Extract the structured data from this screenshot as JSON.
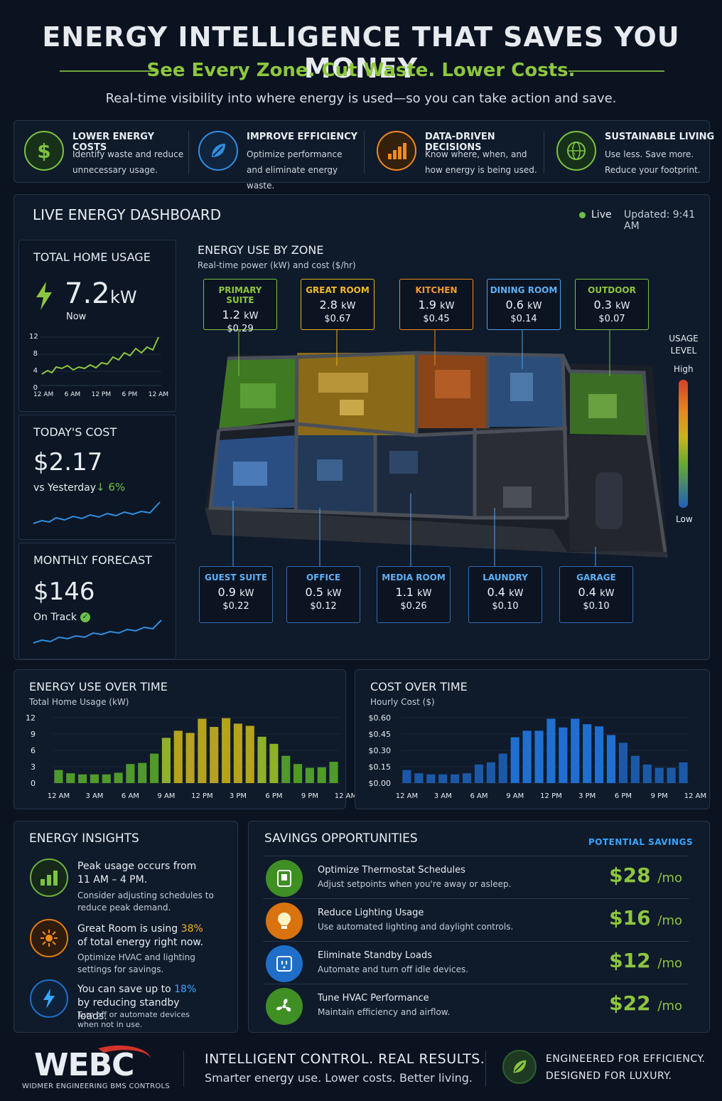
{
  "header": {
    "title": "ENERGY INTELLIGENCE THAT SAVES YOU MONEY",
    "subtitle": "See Every Zone. Cut Waste. Lower Costs.",
    "tagline": "Real-time visibility into where energy is used—so you can take action and save."
  },
  "benefits": [
    {
      "icon": "dollar-icon",
      "title": "LOWER ENERGY COSTS",
      "desc": "Identify waste and reduce unnecessary usage.",
      "color": "#7cc243"
    },
    {
      "icon": "leaf-icon",
      "title": "IMPROVE EFFICIENCY",
      "desc": "Optimize performance and eliminate energy waste.",
      "color": "#2f8fe0"
    },
    {
      "icon": "bar-chart-icon",
      "title": "DATA-DRIVEN DECISIONS",
      "desc": "Know where, when, and how energy is being used.",
      "color": "#f08a1c"
    },
    {
      "icon": "globe-icon",
      "title": "SUSTAINABLE LIVING",
      "desc": "Use less. Save more. Reduce your footprint.",
      "color": "#7cc243"
    }
  ],
  "dashboard": {
    "title": "LIVE ENERGY DASHBOARD",
    "live": "Live",
    "updated": "Updated: 9:41 AM",
    "total": {
      "title": "TOTAL HOME USAGE",
      "value": "7.2",
      "unit": "kW",
      "now": "Now",
      "yticks": [
        "12",
        "8",
        "4",
        "0"
      ],
      "xticks": [
        "12 AM",
        "6 AM",
        "12 PM",
        "6 PM",
        "12 AM"
      ]
    },
    "cost": {
      "title": "TODAY'S COST",
      "value": "$2.17",
      "vs": "vs Yesterday",
      "change": "↓ 6%"
    },
    "forecast": {
      "title": "MONTHLY FORECAST",
      "value": "$146",
      "status": "On Track"
    },
    "zones_title": "ENERGY USE BY ZONE",
    "zones_sub": "Real-time power (kW) and cost ($/hr)",
    "legend": {
      "title1": "USAGE",
      "title2": "LEVEL",
      "high": "High",
      "low": "Low"
    },
    "zones_top": [
      {
        "name": "PRIMARY SUITE",
        "kw": "1.2",
        "unit": "kW",
        "cost": "$0.29",
        "color": "#7cc243"
      },
      {
        "name": "GREAT ROOM",
        "kw": "2.8",
        "unit": "kW",
        "cost": "$0.67",
        "color": "#e9b21e"
      },
      {
        "name": "KITCHEN",
        "kw": "1.9",
        "unit": "kW",
        "cost": "$0.45",
        "color": "#f08a1c"
      },
      {
        "name": "DINING ROOM",
        "kw": "0.6",
        "unit": "kW",
        "cost": "$0.14",
        "color": "#4da3f0"
      },
      {
        "name": "OUTDOOR",
        "kw": "0.3",
        "unit": "kW",
        "cost": "$0.07",
        "color": "#7cc243"
      }
    ],
    "zones_bottom": [
      {
        "name": "GUEST SUITE",
        "kw": "0.9",
        "unit": "kW",
        "cost": "$0.22",
        "color": "#4da3f0"
      },
      {
        "name": "OFFICE",
        "kw": "0.5",
        "unit": "kW",
        "cost": "$0.12",
        "color": "#4da3f0"
      },
      {
        "name": "MEDIA ROOM",
        "kw": "1.1",
        "unit": "kW",
        "cost": "$0.26",
        "color": "#4da3f0"
      },
      {
        "name": "LAUNDRY",
        "kw": "0.4",
        "unit": "kW",
        "cost": "$0.10",
        "color": "#4da3f0"
      },
      {
        "name": "GARAGE",
        "kw": "0.4",
        "unit": "kW",
        "cost": "$0.10",
        "color": "#4da3f0"
      }
    ]
  },
  "chart_data": [
    {
      "type": "bar",
      "title": "ENERGY USE OVER TIME",
      "subtitle": "Total Home Usage (kW)",
      "ylim": [
        0,
        12
      ],
      "yticks": [
        "12",
        "9",
        "6",
        "3",
        "0"
      ],
      "xticks": [
        "12 AM",
        "3 AM",
        "6 AM",
        "9 AM",
        "12 PM",
        "3 PM",
        "6 PM",
        "9 PM",
        "12 AM"
      ],
      "values": [
        2.4,
        1.8,
        1.6,
        1.6,
        1.6,
        1.9,
        3.5,
        3.7,
        5.4,
        8.3,
        9.6,
        9.2,
        11.8,
        10.3,
        11.9,
        10.9,
        10.5,
        8.5,
        7.2,
        5.0,
        3.5,
        2.8,
        2.9,
        3.9
      ]
    },
    {
      "type": "bar",
      "title": "COST OVER TIME",
      "subtitle": "Hourly Cost ($)",
      "ylim": [
        0,
        0.6
      ],
      "yticks": [
        "$0.60",
        "$0.45",
        "$0.30",
        "$0.15",
        "$0.00"
      ],
      "xticks": [
        "12 AM",
        "3 AM",
        "6 AM",
        "9 AM",
        "12 PM",
        "3 PM",
        "6 PM",
        "9 PM",
        "12 AM"
      ],
      "values": [
        0.12,
        0.09,
        0.08,
        0.08,
        0.08,
        0.09,
        0.17,
        0.19,
        0.27,
        0.42,
        0.48,
        0.48,
        0.59,
        0.51,
        0.59,
        0.54,
        0.52,
        0.44,
        0.37,
        0.25,
        0.17,
        0.14,
        0.14,
        0.19
      ]
    }
  ],
  "insights": {
    "title": "ENERGY INSIGHTS",
    "items": [
      {
        "icon": "bar-chart-icon",
        "main": "Peak usage occurs from 11 AM – 4 PM.",
        "sub": "Consider adjusting schedules to reduce peak demand.",
        "color": "#7cc243"
      },
      {
        "icon": "sun-icon",
        "pre": "Great Room is using ",
        "hl": "38%",
        "post": " of total energy right now.",
        "sub": "Optimize HVAC and lighting settings for savings.",
        "color": "#f08a1c"
      },
      {
        "icon": "lightning-icon",
        "pre": "You can save up to ",
        "hl": "18%",
        "post": " by reducing standby loads.",
        "sub": "Turn off or automate devices when not in use.",
        "color": "#2f8fe0"
      }
    ]
  },
  "savings": {
    "title": "SAVINGS OPPORTUNITIES",
    "col": "POTENTIAL SAVINGS",
    "items": [
      {
        "icon": "thermostat-icon",
        "title": "Optimize Thermostat Schedules",
        "desc": "Adjust setpoints when you're away or asleep.",
        "amount": "$28",
        "unit": "/mo",
        "color": "#4a9a2c"
      },
      {
        "icon": "lightbulb-icon",
        "title": "Reduce Lighting Usage",
        "desc": "Use automated lighting and daylight controls.",
        "amount": "$16",
        "unit": "/mo",
        "color": "#e07c12"
      },
      {
        "icon": "outlet-icon",
        "title": "Eliminate Standby Loads",
        "desc": "Automate and turn off idle devices.",
        "amount": "$12",
        "unit": "/mo",
        "color": "#1f6fc9"
      },
      {
        "icon": "fan-icon",
        "title": "Tune HVAC Performance",
        "desc": "Maintain efficiency and airflow.",
        "amount": "$22",
        "unit": "/mo",
        "color": "#4a9a2c"
      }
    ]
  },
  "footer": {
    "logo": "WEBC",
    "logo_sub": "WIDMER ENGINEERING BMS CONTROLS",
    "headline": "INTELLIGENT CONTROL. REAL RESULTS.",
    "sub": "Smarter energy use. Lower costs. Better living.",
    "right1": "ENGINEERED FOR EFFICIENCY.",
    "right2": "DESIGNED FOR LUXURY."
  }
}
